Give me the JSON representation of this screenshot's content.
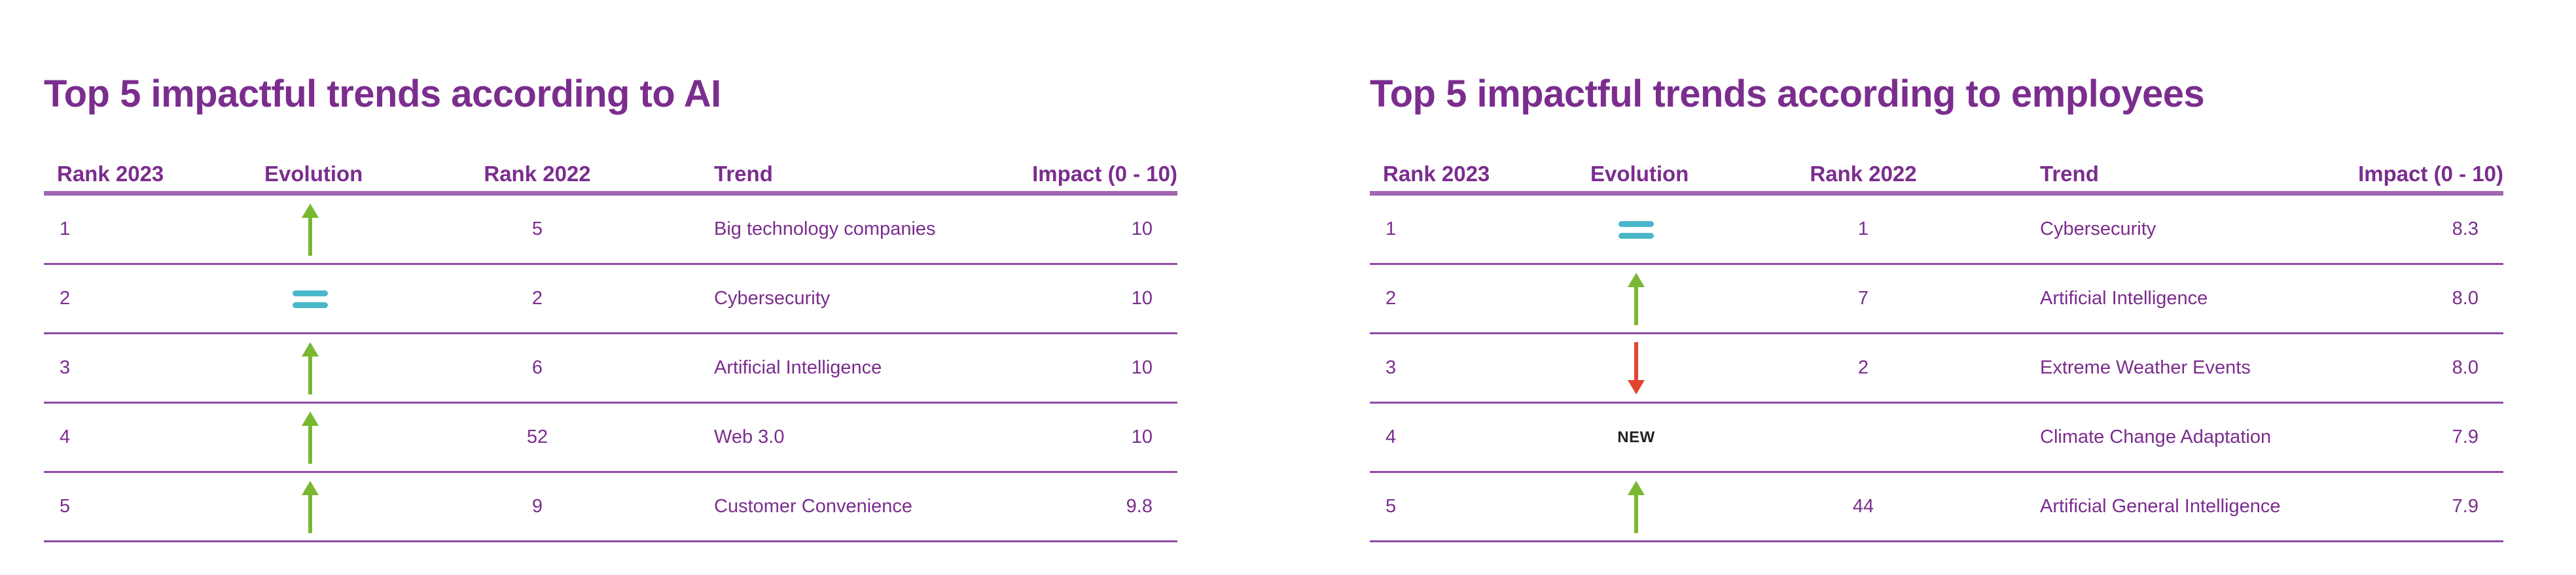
{
  "colors": {
    "title": "#7b2d8e",
    "up": "#7ab733",
    "equal": "#4ab7c9",
    "down": "#e2452f",
    "new_text": "#222222"
  },
  "panels": [
    {
      "title": "Top 5 impactful trends according to AI",
      "headers": {
        "rank2023": "Rank 2023",
        "evolution": "Evolution",
        "rank2022": "Rank 2022",
        "trend": "Trend",
        "impact": "Impact (0 - 10)"
      },
      "rows": [
        {
          "rank2023": "1",
          "evolution": "up",
          "evolution_icon": "arrow-up-icon",
          "rank2022": "5",
          "trend": "Big technology companies",
          "impact": "10"
        },
        {
          "rank2023": "2",
          "evolution": "equal",
          "evolution_icon": "equal-icon",
          "rank2022": "2",
          "trend": "Cybersecurity",
          "impact": "10"
        },
        {
          "rank2023": "3",
          "evolution": "up",
          "evolution_icon": "arrow-up-icon",
          "rank2022": "6",
          "trend": "Artificial Intelligence",
          "impact": "10"
        },
        {
          "rank2023": "4",
          "evolution": "up",
          "evolution_icon": "arrow-up-icon",
          "rank2022": "52",
          "trend": "Web 3.0",
          "impact": "10"
        },
        {
          "rank2023": "5",
          "evolution": "up",
          "evolution_icon": "arrow-up-icon",
          "rank2022": "9",
          "trend": "Customer Convenience",
          "impact": "9.8"
        }
      ]
    },
    {
      "title": "Top 5 impactful trends according to employees",
      "headers": {
        "rank2023": "Rank 2023",
        "evolution": "Evolution",
        "rank2022": "Rank 2022",
        "trend": "Trend",
        "impact": "Impact (0 - 10)"
      },
      "rows": [
        {
          "rank2023": "1",
          "evolution": "equal",
          "evolution_icon": "equal-icon",
          "rank2022": "1",
          "trend": "Cybersecurity",
          "impact": "8.3"
        },
        {
          "rank2023": "2",
          "evolution": "up",
          "evolution_icon": "arrow-up-icon",
          "rank2022": "7",
          "trend": "Artificial Intelligence",
          "impact": "8.0"
        },
        {
          "rank2023": "3",
          "evolution": "down",
          "evolution_icon": "arrow-down-icon",
          "rank2022": "2",
          "trend": "Extreme Weather Events",
          "impact": "8.0"
        },
        {
          "rank2023": "4",
          "evolution": "new",
          "evolution_label": "NEW",
          "rank2022": "",
          "trend": "Climate Change Adaptation",
          "impact": "7.9"
        },
        {
          "rank2023": "5",
          "evolution": "up",
          "evolution_icon": "arrow-up-icon",
          "rank2022": "44",
          "trend": "Artificial General Intelligence",
          "impact": "7.9"
        }
      ]
    }
  ]
}
